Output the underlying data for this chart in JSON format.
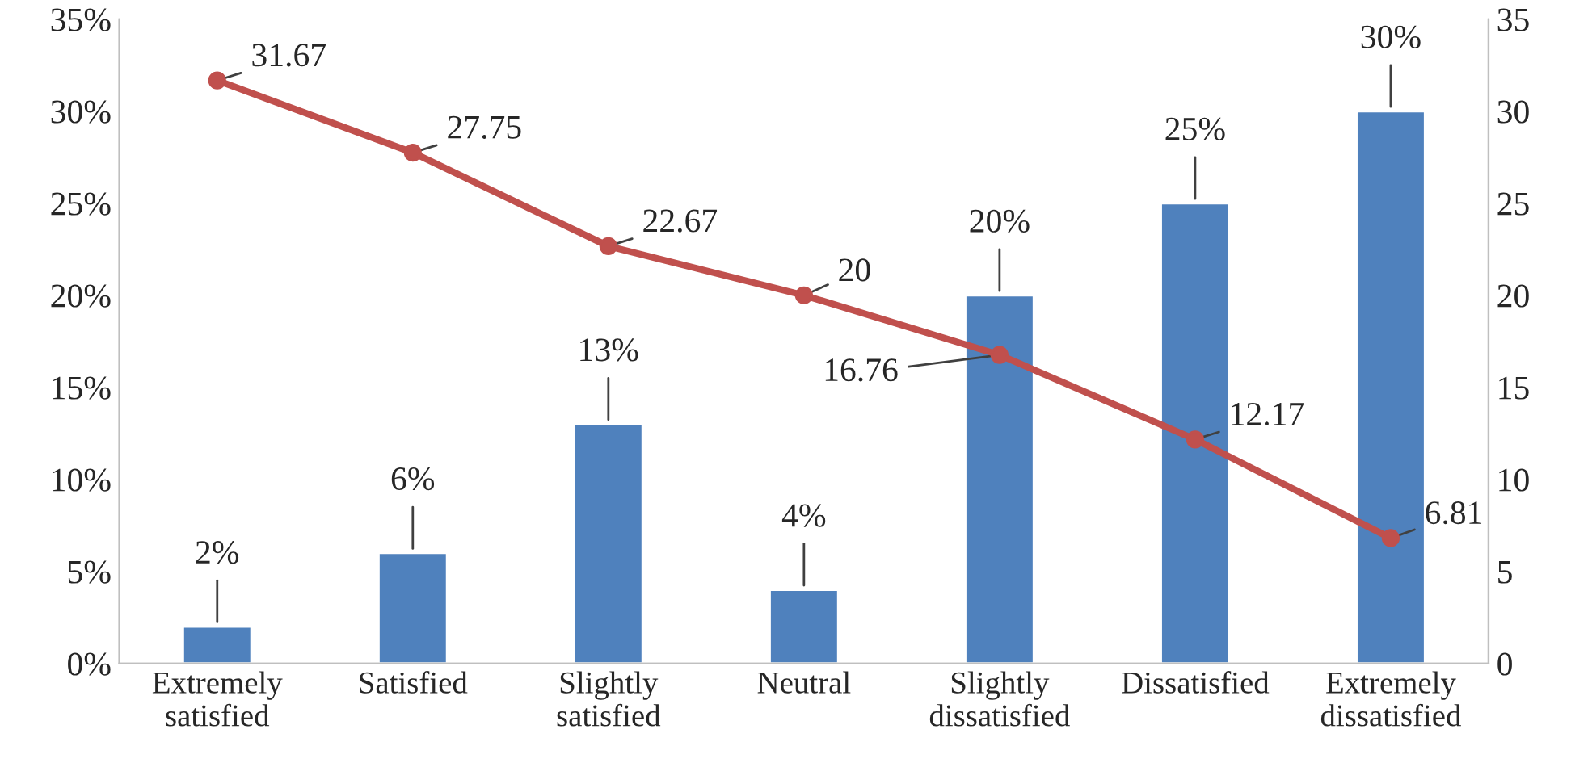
{
  "chart_data": {
    "type": "bar",
    "categories": [
      "Extremely satisfied",
      "Satisfied",
      "Slightly satisfied",
      "Neutral",
      "Slightly dissatisfied",
      "Dissatisfied",
      "Extremely dissatisfied"
    ],
    "series": [
      {
        "color": "#4f81bd",
        "values": [
          2,
          6,
          13,
          4,
          20,
          25,
          30
        ],
        "value_labels": [
          "2%",
          "6%",
          "13%",
          "4%",
          "20%",
          "25%",
          "30%"
        ]
      },
      {
        "type": "line",
        "axis": "y2",
        "color": "#c0504d",
        "marker": "circle",
        "values": [
          31.67,
          27.75,
          22.67,
          20,
          16.76,
          12.17,
          6.81
        ],
        "value_labels": [
          "31.67",
          "27.75",
          "22.67",
          "20",
          "16.76",
          "12.17",
          "6.81"
        ]
      }
    ],
    "ylim": [
      0,
      35
    ],
    "yticks": [
      {
        "value": 0,
        "label": "0%"
      },
      {
        "value": 5,
        "label": "5%"
      },
      {
        "value": 10,
        "label": "10%"
      },
      {
        "value": 15,
        "label": "15%"
      },
      {
        "value": 20,
        "label": "20%"
      },
      {
        "value": 25,
        "label": "25%"
      },
      {
        "value": 30,
        "label": "30%"
      },
      {
        "value": 35,
        "label": "35%"
      }
    ],
    "y2lim": [
      0,
      35
    ],
    "y2ticks": [
      0,
      5,
      10,
      15,
      20,
      25,
      30,
      35
    ],
    "grid": false,
    "legend": false
  }
}
